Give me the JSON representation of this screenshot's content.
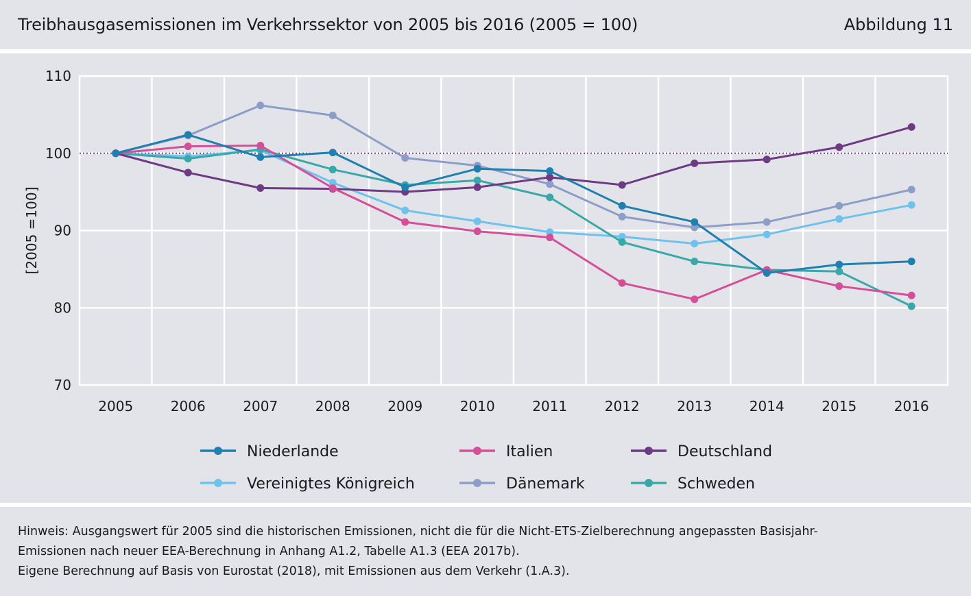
{
  "header": {
    "title": "Treibhausgasemissionen im Verkehrssektor von 2005 bis 2016 (2005 = 100)",
    "figure_label": "Abbildung 11"
  },
  "notes": {
    "line1": "Hinweis: Ausgangswert für 2005 sind die historischen Emissionen, nicht die für die Nicht-ETS-Zielberechnung angepassten Basisjahr-",
    "line2": "Emissionen nach neuer EEA-Berechnung in Anhang A1.2, Tabelle A1.3 (EEA 2017b).",
    "line3": "Eigene Berechnung auf Basis von Eurostat (2018), mit Emissionen aus dem Verkehr (1.A.3)."
  },
  "chart_data": {
    "type": "line",
    "title": "Treibhausgasemissionen im Verkehrssektor von 2005 bis 2016 (2005 = 100)",
    "xlabel": "",
    "ylabel": "[2005 =100]",
    "x": [
      "2005",
      "2006",
      "2007",
      "2008",
      "2009",
      "2010",
      "2011",
      "2012",
      "2013",
      "2014",
      "2015",
      "2016"
    ],
    "ylim": [
      70,
      110
    ],
    "yticks": [
      70,
      80,
      90,
      100,
      110
    ],
    "grid": true,
    "reference_line": 100,
    "reference_color": "#7b3f8c",
    "legend_position": "bottom",
    "series": [
      {
        "name": "Niederlande",
        "color": "#1f7fae",
        "values": [
          100,
          102.4,
          99.5,
          100.1,
          95.6,
          98.0,
          97.7,
          93.2,
          91.1,
          84.5,
          85.6,
          86.0
        ]
      },
      {
        "name": "Italien",
        "color": "#d44f98",
        "values": [
          100,
          100.9,
          101.0,
          95.5,
          91.1,
          89.9,
          89.1,
          83.2,
          81.1,
          84.9,
          82.8,
          81.6
        ]
      },
      {
        "name": "Deutschland",
        "color": "#6d3a83",
        "values": [
          100,
          97.5,
          95.5,
          95.4,
          95.0,
          95.6,
          96.9,
          95.9,
          98.7,
          99.2,
          100.8,
          103.4
        ]
      },
      {
        "name": "Vereinigtes Königreich",
        "color": "#6ec2ec",
        "values": [
          100,
          99.6,
          100.4,
          96.2,
          92.6,
          91.2,
          89.8,
          89.2,
          88.3,
          89.5,
          91.5,
          93.3
        ]
      },
      {
        "name": "Dänemark",
        "color": "#8c9dc8",
        "values": [
          100,
          102.3,
          106.2,
          104.9,
          99.4,
          98.4,
          96.0,
          91.8,
          90.4,
          91.1,
          93.2,
          95.3
        ]
      },
      {
        "name": "Schweden",
        "color": "#3aa8a8",
        "values": [
          100,
          99.3,
          100.5,
          97.9,
          95.9,
          96.5,
          94.3,
          88.5,
          86.0,
          84.9,
          84.7,
          80.2
        ]
      }
    ]
  }
}
